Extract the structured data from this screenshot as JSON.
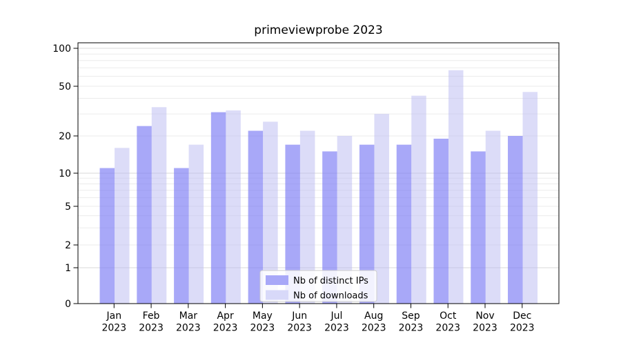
{
  "chart_data": {
    "type": "bar",
    "title": "primeviewprobe 2023",
    "categories": [
      "Jan 2023",
      "Feb 2023",
      "Mar 2023",
      "Apr 2023",
      "May 2023",
      "Jun 2023",
      "Jul 2023",
      "Aug 2023",
      "Sep 2023",
      "Oct 2023",
      "Nov 2023",
      "Dec 2023"
    ],
    "series": [
      {
        "key": "ips",
        "name": "Nb of distinct IPs",
        "values": [
          11,
          24,
          11,
          31,
          22,
          17,
          15,
          17,
          17,
          19,
          15,
          20
        ]
      },
      {
        "key": "downloads",
        "name": "Nb of downloads",
        "values": [
          16,
          34,
          17,
          32,
          26,
          22,
          20,
          30,
          42,
          67,
          22,
          45
        ]
      }
    ],
    "xlabel": "",
    "ylabel": "",
    "yscale": "log-like (log10(1+x), 0 shown at axis bottom)",
    "yticks": [
      0,
      1,
      2,
      5,
      10,
      20,
      50,
      100
    ],
    "ylim": [
      0,
      110
    ],
    "grid": true,
    "legend_position": "lower center"
  },
  "colors": {
    "ips_bar": "#7979f4",
    "ips_alpha": 0.65,
    "ips_apparent": "#a8a8f8",
    "downloads_bar": "#b9b9f2",
    "downloads_alpha": 0.5,
    "downloads_apparent": "#d8d9f9",
    "grid_minor": "#ebebeb",
    "grid_major": "#d9d9d9",
    "axis": "#000000",
    "text": "#000000",
    "legend_border": "#cccccc",
    "legend_bg": "#ffffff"
  }
}
